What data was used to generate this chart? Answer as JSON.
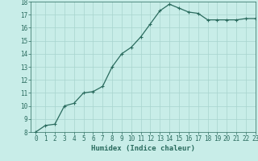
{
  "x": [
    0,
    1,
    2,
    3,
    4,
    5,
    6,
    7,
    8,
    9,
    10,
    11,
    12,
    13,
    14,
    15,
    16,
    17,
    18,
    19,
    20,
    21,
    22,
    23
  ],
  "y": [
    8.0,
    8.5,
    8.6,
    10.0,
    10.2,
    11.0,
    11.1,
    11.5,
    13.0,
    14.0,
    14.5,
    15.3,
    16.3,
    17.3,
    17.8,
    17.5,
    17.2,
    17.1,
    16.6,
    16.6,
    16.6,
    16.6,
    16.7,
    16.7
  ],
  "line_color": "#2a6b5e",
  "marker": "+",
  "marker_size": 3,
  "bg_color": "#c8ede8",
  "grid_color": "#a8d4ce",
  "xlabel": "Humidex (Indice chaleur)",
  "ylim": [
    8,
    18
  ],
  "xlim": [
    -0.5,
    23
  ],
  "yticks": [
    8,
    9,
    10,
    11,
    12,
    13,
    14,
    15,
    16,
    17,
    18
  ],
  "xticks": [
    0,
    1,
    2,
    3,
    4,
    5,
    6,
    7,
    8,
    9,
    10,
    11,
    12,
    13,
    14,
    15,
    16,
    17,
    18,
    19,
    20,
    21,
    22,
    23
  ],
  "tick_label_fontsize": 5.5,
  "xlabel_fontsize": 6.5,
  "tick_color": "#2a6b5e",
  "label_color": "#2a6b5e",
  "linewidth": 0.9,
  "markeredgewidth": 0.8
}
